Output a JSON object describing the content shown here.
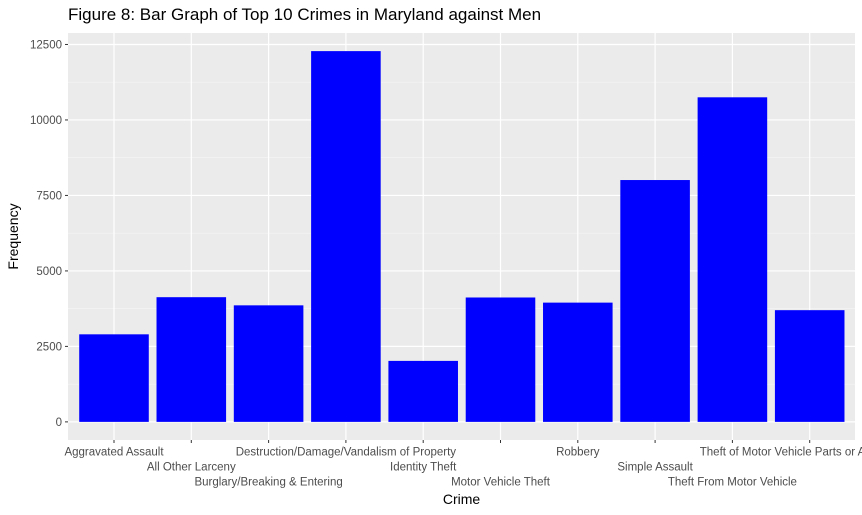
{
  "chart_data": {
    "type": "bar",
    "title": "Figure 8: Bar Graph of Top 10 Crimes in Maryland against Men",
    "xlabel": "Crime",
    "ylabel": "Frequency",
    "categories": [
      "Aggravated Assault",
      "All Other Larceny",
      "Burglary/Breaking & Entering",
      "Destruction/Damage/Vandalism of Property",
      "Identity Theft",
      "Motor Vehicle Theft",
      "Robbery",
      "Simple Assault",
      "Theft From Motor Vehicle",
      "Theft of Motor Vehicle Parts or Accessories"
    ],
    "values": [
      2900,
      4130,
      3860,
      12280,
      2020,
      4120,
      3950,
      8010,
      10750,
      3700
    ],
    "yticks": [
      0,
      2500,
      5000,
      7500,
      10000,
      12500
    ],
    "ytick_labels": [
      "0",
      "2500",
      "5000",
      "7500",
      "10000",
      "12500"
    ],
    "ylim": [
      -600,
      12880
    ],
    "grid": true,
    "colors": {
      "bar": "#0000ff",
      "panel": "#ebebeb",
      "grid_major": "#ffffff",
      "tick_text": "#4d4d4d",
      "tick_mark": "#333333"
    }
  }
}
